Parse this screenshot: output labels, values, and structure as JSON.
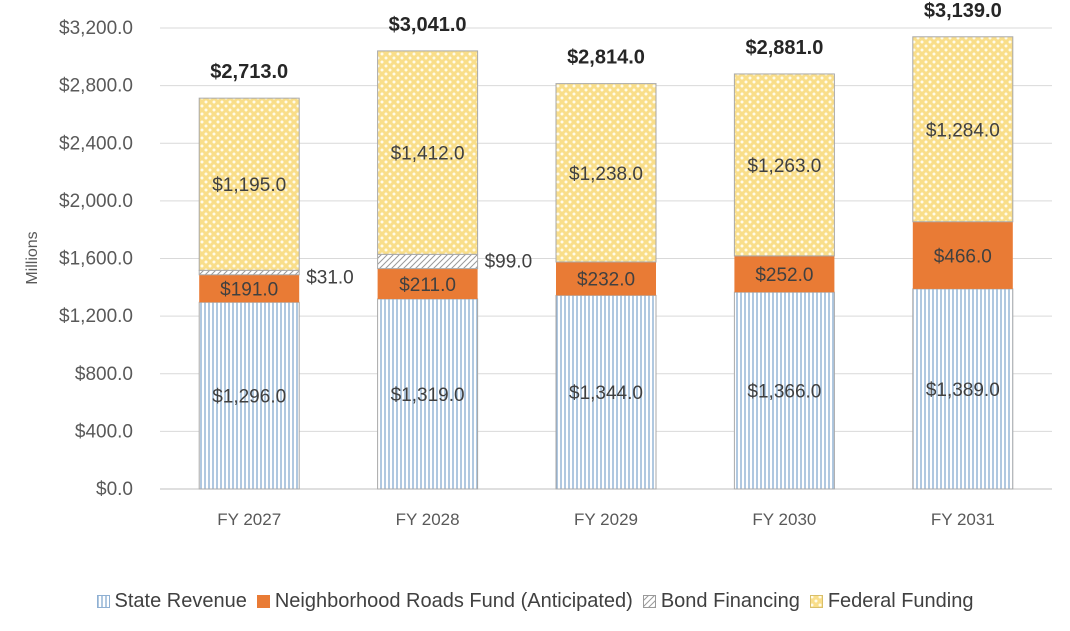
{
  "chart_data": {
    "type": "bar",
    "stacked": true,
    "ylabel": "Millions",
    "ylim": [
      0,
      3200
    ],
    "ytick_step": 400,
    "ytick_labels": [
      "$0.0",
      "$400.0",
      "$800.0",
      "$1,200.0",
      "$1,600.0",
      "$2,000.0",
      "$2,400.0",
      "$2,800.0",
      "$3,200.0"
    ],
    "grid": true,
    "legend_position": "bottom",
    "categories": [
      "FY 2027",
      "FY 2028",
      "FY 2029",
      "FY 2030",
      "FY 2031"
    ],
    "series": [
      {
        "name": "State Revenue",
        "values": [
          1296,
          1319,
          1344,
          1366,
          1389
        ],
        "labels": [
          "$1,296.0",
          "$1,319.0",
          "$1,344.0",
          "$1,366.0",
          "$1,389.0"
        ],
        "color": "#dae6f2",
        "pattern": "vertical-lines"
      },
      {
        "name": "Neighborhood Roads Fund (Anticipated)",
        "values": [
          191,
          211,
          232,
          252,
          466
        ],
        "labels": [
          "$191.0",
          "$211.0",
          "$232.0",
          "$252.0",
          "$466.0"
        ],
        "color": "#e97b35",
        "pattern": "solid"
      },
      {
        "name": "Bond Financing",
        "values": [
          31,
          99,
          0,
          0,
          0
        ],
        "labels": [
          "$31.0",
          "$99.0",
          "",
          "",
          ""
        ],
        "color": "#ffffff",
        "pattern": "diagonal"
      },
      {
        "name": "Federal Funding",
        "values": [
          1195,
          1412,
          1238,
          1263,
          1284
        ],
        "labels": [
          "$1,195.0",
          "$1,412.0",
          "$1,238.0",
          "$1,263.0",
          "$1,284.0"
        ],
        "color": "#fbe5a0",
        "pattern": "dotted"
      }
    ],
    "totals": [
      2713,
      3041,
      2814,
      2881,
      3139
    ],
    "total_labels": [
      "$2,713.0",
      "$3,041.0",
      "$2,814.0",
      "$2,881.0",
      "$3,139.0"
    ]
  }
}
